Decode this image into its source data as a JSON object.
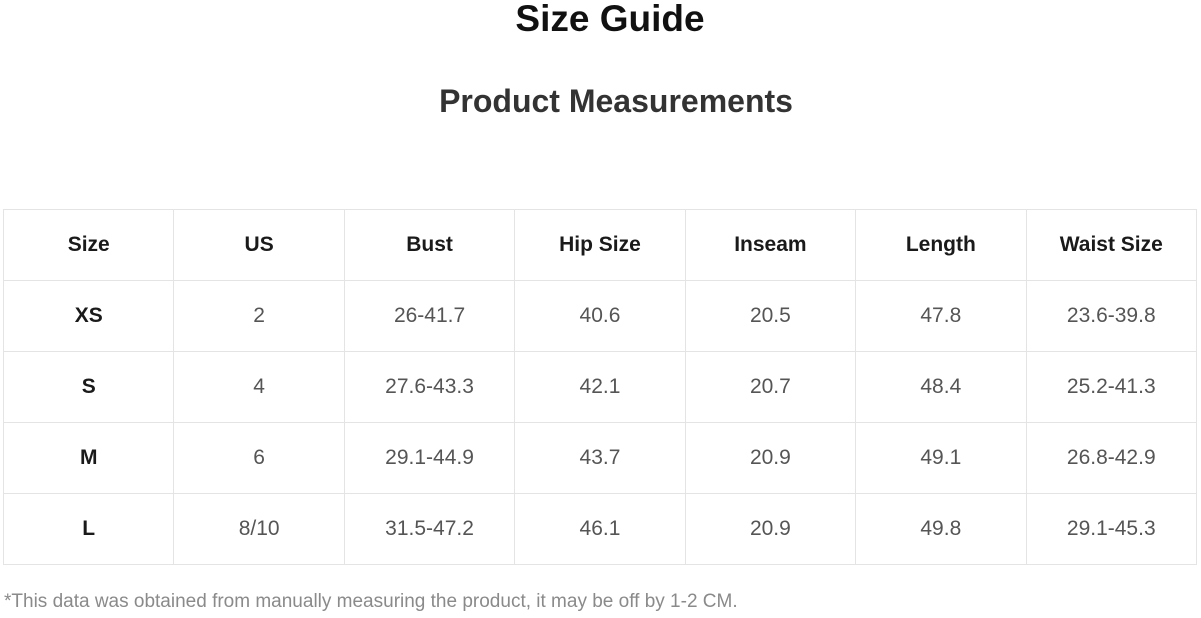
{
  "title": "Size Guide",
  "subtitle": "Product Measurements",
  "table": {
    "headers": [
      "Size",
      "US",
      "Bust",
      "Hip Size",
      "Inseam",
      "Length",
      "Waist Size"
    ],
    "rows": [
      [
        "XS",
        "2",
        "26-41.7",
        "40.6",
        "20.5",
        "47.8",
        "23.6-39.8"
      ],
      [
        "S",
        "4",
        "27.6-43.3",
        "42.1",
        "20.7",
        "48.4",
        "25.2-41.3"
      ],
      [
        "M",
        "6",
        "29.1-44.9",
        "43.7",
        "20.9",
        "49.1",
        "26.8-42.9"
      ],
      [
        "L",
        "8/10",
        "31.5-47.2",
        "46.1",
        "20.9",
        "49.8",
        "29.1-45.3"
      ]
    ]
  },
  "footnote": "*This data was obtained from manually measuring the product, it may be off by 1-2 CM."
}
